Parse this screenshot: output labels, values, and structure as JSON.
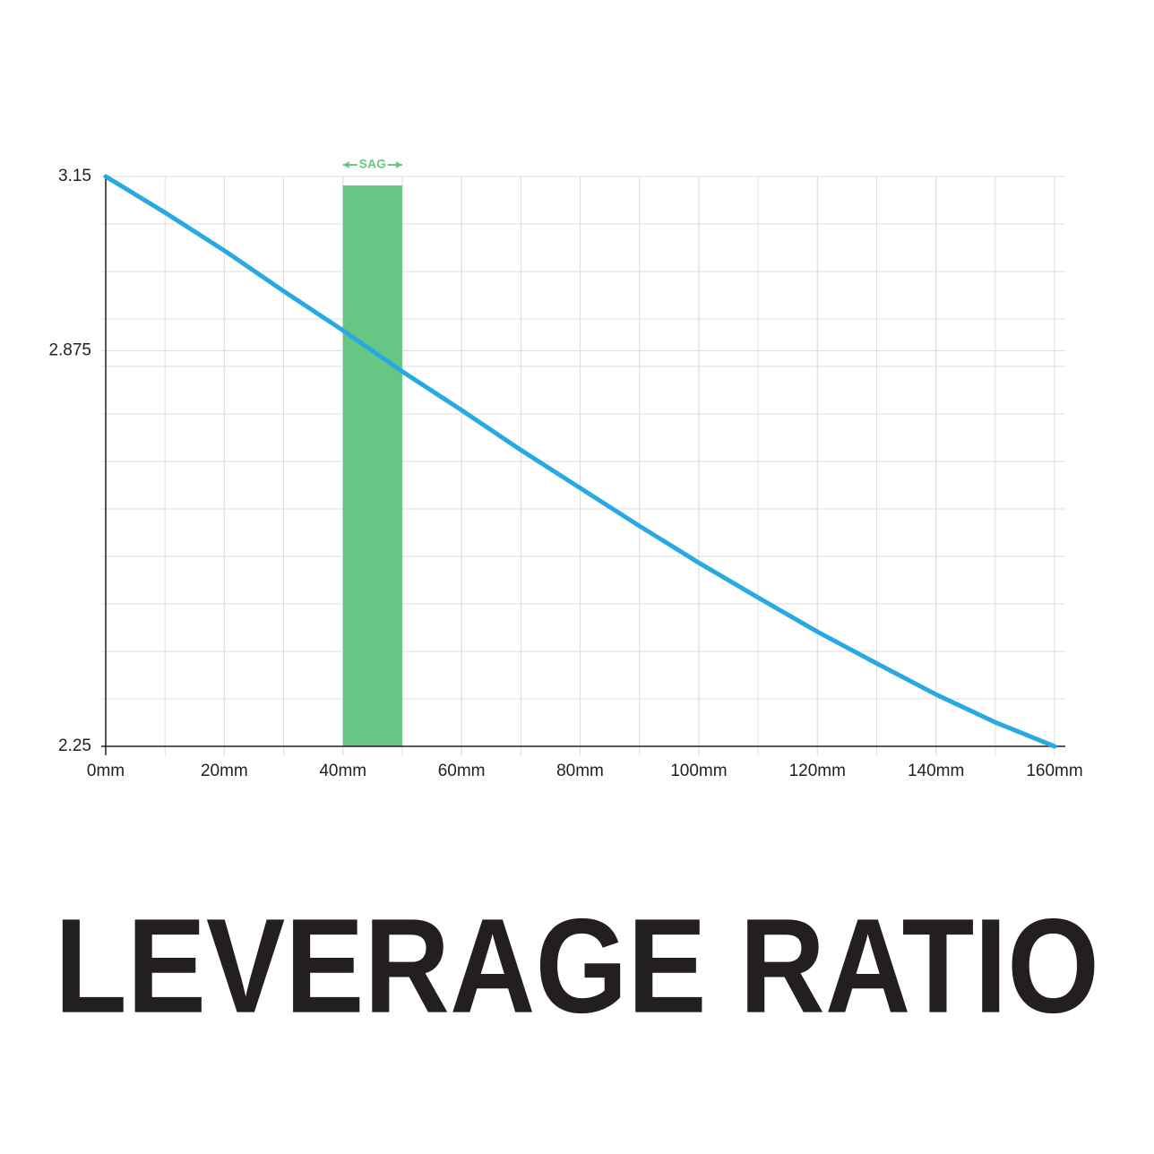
{
  "chart_data": {
    "type": "line",
    "title": "LEVERAGE RATIO",
    "x": [
      0,
      10,
      20,
      30,
      40,
      50,
      60,
      70,
      80,
      90,
      100,
      110,
      120,
      130,
      140,
      150,
      160
    ],
    "series": [
      {
        "color": "#29a9e1",
        "values": [
          3.15,
          3.093,
          3.033,
          2.969,
          2.907,
          2.842,
          2.781,
          2.718,
          2.658,
          2.598,
          2.54,
          2.485,
          2.431,
          2.381,
          2.332,
          2.288,
          2.25
        ]
      }
    ],
    "xlim": [
      0,
      160
    ],
    "xticks": [
      {
        "value": 0,
        "label": "0mm"
      },
      {
        "value": 20,
        "label": "20mm"
      },
      {
        "value": 40,
        "label": "40mm"
      },
      {
        "value": 60,
        "label": "60mm"
      },
      {
        "value": 80,
        "label": "80mm"
      },
      {
        "value": 100,
        "label": "100mm"
      },
      {
        "value": 120,
        "label": "120mm"
      },
      {
        "value": 140,
        "label": "140mm"
      },
      {
        "value": 160,
        "label": "160mm"
      }
    ],
    "ylim": [
      2.25,
      3.15
    ],
    "yticks": [
      2.25,
      2.875,
      3.15
    ],
    "grid": true,
    "sag": {
      "label": "SAG",
      "start": 40,
      "end": 50,
      "top": 3.136,
      "color": "#66c784"
    }
  }
}
